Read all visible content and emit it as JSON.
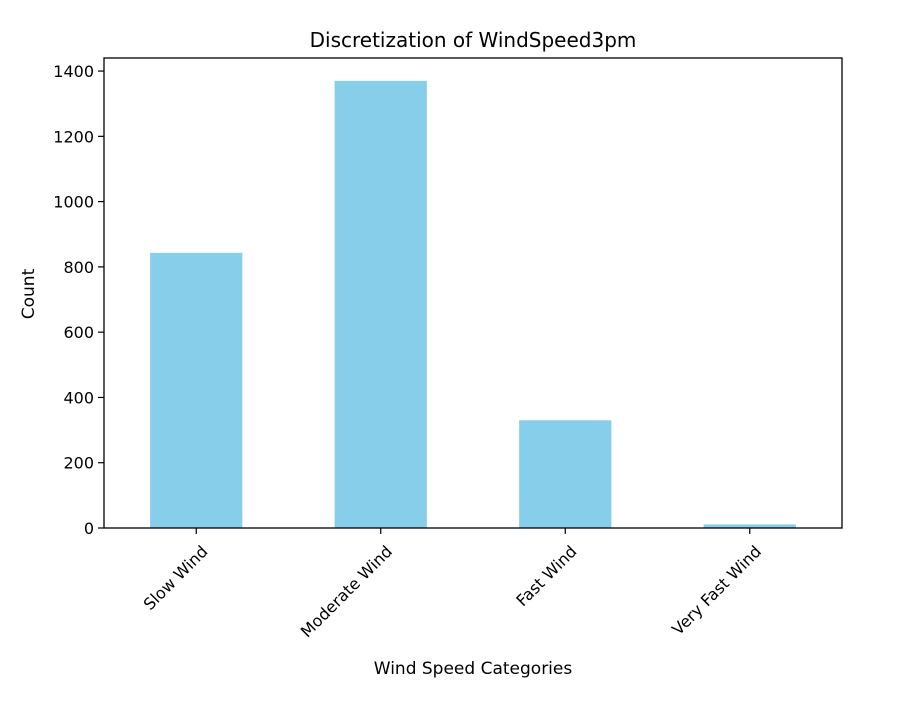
{
  "chart_data": {
    "type": "bar",
    "title": "Discretization of WindSpeed3pm",
    "xlabel": "Wind Speed Categories",
    "ylabel": "Count",
    "categories": [
      "Slow Wind",
      "Moderate Wind",
      "Fast Wind",
      "Very Fast Wind"
    ],
    "values": [
      843,
      1370,
      330,
      11
    ],
    "ylim": [
      0,
      1440
    ],
    "yticks": [
      0,
      200,
      400,
      600,
      800,
      1000,
      1200,
      1400
    ],
    "bar_color": "#87CEEB",
    "grid": false,
    "legend": "none"
  }
}
